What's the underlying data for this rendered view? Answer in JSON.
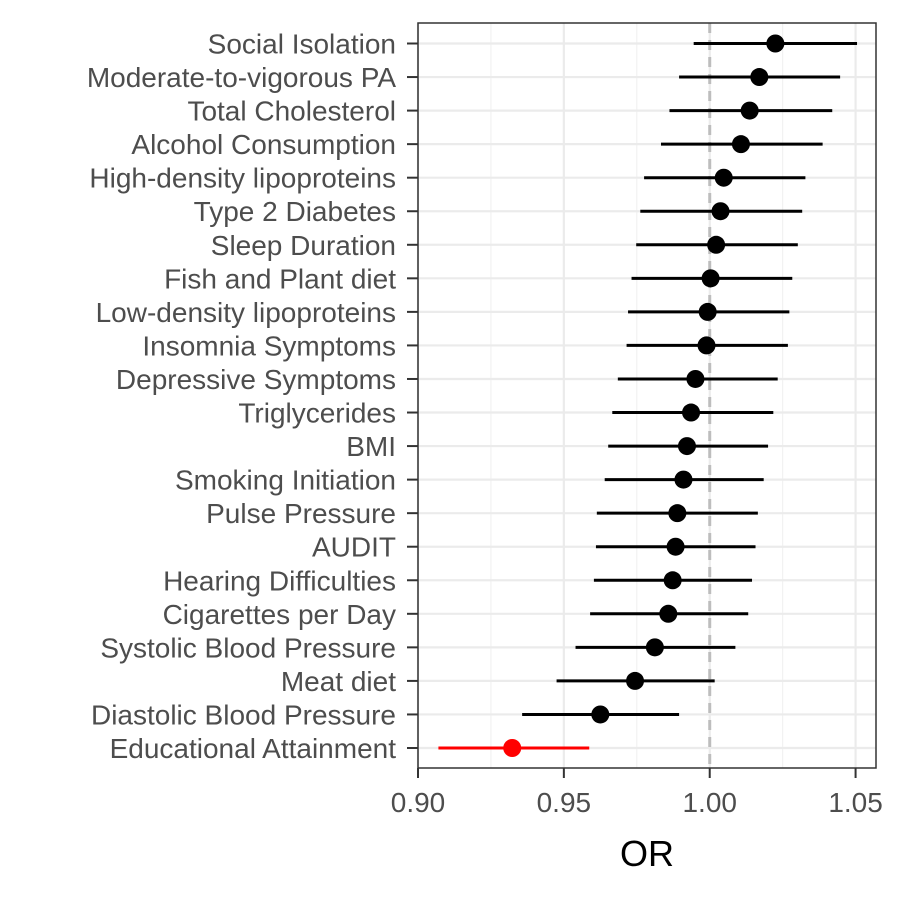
{
  "chart_data": {
    "type": "forest",
    "xlabel": "OR",
    "ylabel": "",
    "xlim": [
      0.9,
      1.057
    ],
    "x_ticks": [
      "0.90",
      "0.95",
      "1.00",
      "1.05"
    ],
    "reference_line": 1.0,
    "grid": true,
    "point_color": "#000000",
    "highlight_color": "#ff0000",
    "categories": [
      "Social Isolation",
      "Moderate-to-vigorous PA",
      "Total Cholesterol",
      "Alcohol Consumption",
      "High-density lipoproteins",
      "Type 2 Diabetes",
      "Sleep Duration",
      "Fish and Plant diet",
      "Low-density lipoproteins",
      "Insomnia Symptoms",
      "Depressive Symptoms",
      "Triglycerides",
      "BMI",
      "Smoking Initiation",
      "Pulse Pressure",
      "AUDIT",
      "Hearing Difficulties",
      "Cigarettes per Day",
      "Systolic Blood Pressure",
      "Meat diet",
      "Diastolic Blood Pressure",
      "Educational Attainment"
    ],
    "or": [
      1.0225,
      1.017,
      1.0137,
      1.0107,
      1.0048,
      1.0037,
      1.0022,
      1.0003,
      0.9993,
      0.9989,
      0.9951,
      0.9936,
      0.9922,
      0.991,
      0.9889,
      0.9883,
      0.9873,
      0.9858,
      0.9812,
      0.9744,
      0.9625,
      0.9323
    ],
    "lower": [
      0.9945,
      0.9895,
      0.9862,
      0.9833,
      0.9775,
      0.9762,
      0.9748,
      0.9732,
      0.972,
      0.9715,
      0.9685,
      0.9666,
      0.9652,
      0.964,
      0.9613,
      0.961,
      0.9603,
      0.959,
      0.954,
      0.9475,
      0.9357,
      0.907
    ],
    "upper": [
      1.0505,
      1.0447,
      1.042,
      1.0387,
      1.0328,
      1.0317,
      1.0302,
      1.0283,
      1.0273,
      1.0268,
      1.0233,
      1.0218,
      1.02,
      1.0185,
      1.0165,
      1.0157,
      1.0145,
      1.0132,
      1.0088,
      1.0017,
      0.9895,
      0.9587
    ],
    "highlight": [
      false,
      false,
      false,
      false,
      false,
      false,
      false,
      false,
      false,
      false,
      false,
      false,
      false,
      false,
      false,
      false,
      false,
      false,
      false,
      false,
      false,
      true
    ]
  }
}
